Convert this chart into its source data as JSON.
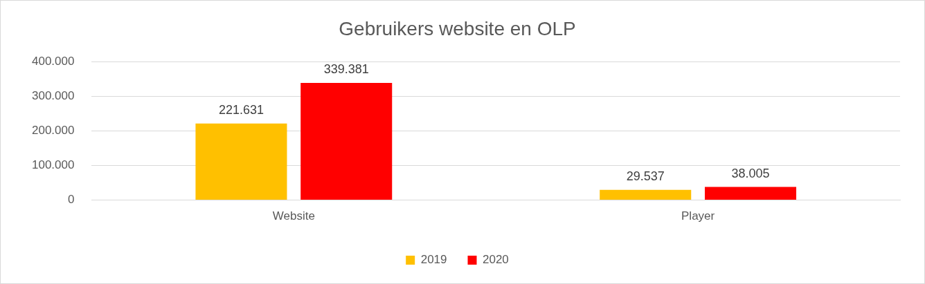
{
  "chart_data": {
    "type": "bar",
    "title": "Gebruikers website en OLP",
    "categories": [
      "Website",
      "Player"
    ],
    "series": [
      {
        "name": "2019",
        "color": "#ffc000",
        "values": [
          221631,
          29537
        ],
        "value_labels": [
          "221.631",
          "29.537"
        ]
      },
      {
        "name": "2020",
        "color": "#ff0000",
        "values": [
          339381,
          38005
        ],
        "value_labels": [
          "339.381",
          "38.005"
        ]
      }
    ],
    "ylim": [
      0,
      400000
    ],
    "yticks": [
      {
        "value": 0,
        "label": "0"
      },
      {
        "value": 100000,
        "label": "100.000"
      },
      {
        "value": 200000,
        "label": "200.000"
      },
      {
        "value": 300000,
        "label": "300.000"
      },
      {
        "value": 400000,
        "label": "400.000"
      }
    ],
    "grid": "y",
    "legend": "bottom"
  }
}
